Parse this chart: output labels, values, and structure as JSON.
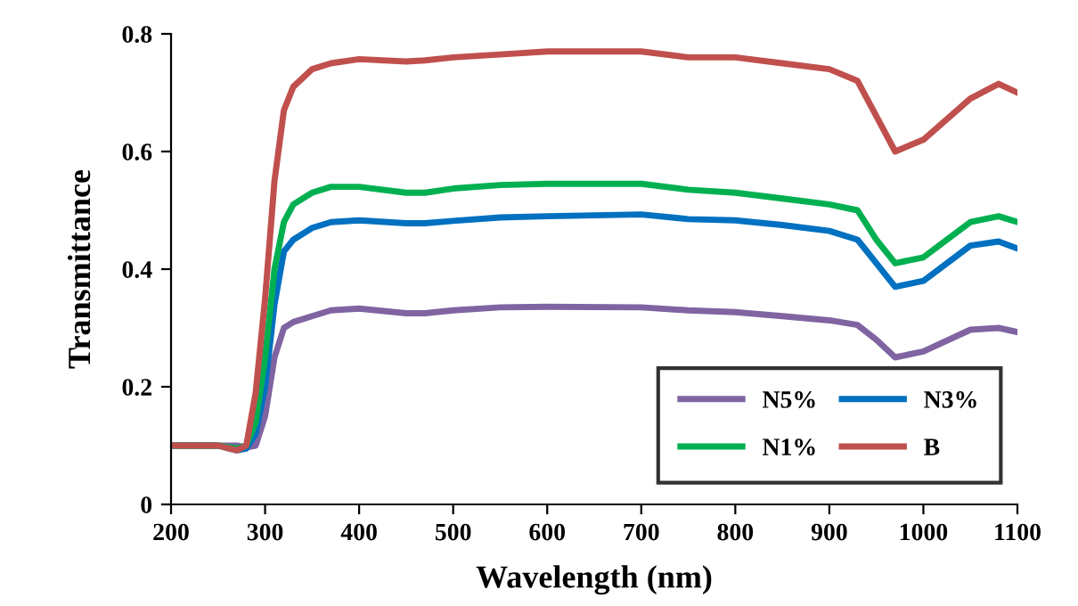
{
  "chart_data": {
    "type": "line",
    "xlabel": "Wavelength (nm)",
    "ylabel": "Transmittance",
    "x": [
      200,
      250,
      270,
      280,
      290,
      300,
      310,
      320,
      330,
      350,
      370,
      400,
      450,
      470,
      500,
      550,
      600,
      700,
      750,
      800,
      850,
      900,
      930,
      950,
      970,
      1000,
      1050,
      1080,
      1100
    ],
    "series": [
      {
        "name": "N5%",
        "color": "#8064a2",
        "values": [
          0.1,
          0.1,
          0.1,
          0.097,
          0.1,
          0.15,
          0.25,
          0.3,
          0.31,
          0.32,
          0.33,
          0.333,
          0.325,
          0.325,
          0.33,
          0.335,
          0.336,
          0.335,
          0.33,
          0.327,
          0.32,
          0.313,
          0.305,
          0.28,
          0.25,
          0.26,
          0.297,
          0.3,
          0.293
        ]
      },
      {
        "name": "N3%",
        "color": "#0070c0",
        "values": [
          0.1,
          0.1,
          0.092,
          0.095,
          0.12,
          0.2,
          0.34,
          0.43,
          0.45,
          0.47,
          0.48,
          0.483,
          0.478,
          0.478,
          0.482,
          0.488,
          0.49,
          0.493,
          0.485,
          0.483,
          0.475,
          0.465,
          0.45,
          0.41,
          0.37,
          0.38,
          0.44,
          0.447,
          0.435
        ]
      },
      {
        "name": "N1%",
        "color": "#00b050",
        "values": [
          0.1,
          0.1,
          0.095,
          0.1,
          0.14,
          0.25,
          0.4,
          0.48,
          0.51,
          0.53,
          0.54,
          0.54,
          0.53,
          0.53,
          0.537,
          0.543,
          0.545,
          0.545,
          0.535,
          0.53,
          0.52,
          0.51,
          0.5,
          0.45,
          0.41,
          0.42,
          0.48,
          0.49,
          0.48
        ]
      },
      {
        "name": "B",
        "color": "#c0504d",
        "values": [
          0.1,
          0.1,
          0.092,
          0.1,
          0.19,
          0.35,
          0.55,
          0.67,
          0.71,
          0.74,
          0.75,
          0.757,
          0.753,
          0.755,
          0.76,
          0.765,
          0.77,
          0.77,
          0.76,
          0.76,
          0.75,
          0.74,
          0.72,
          0.66,
          0.6,
          0.62,
          0.69,
          0.715,
          0.7
        ]
      }
    ],
    "xlim": [
      200,
      1100
    ],
    "xticks": [
      200,
      300,
      400,
      500,
      600,
      700,
      800,
      900,
      1000,
      1100
    ],
    "ylim": [
      0,
      0.8
    ],
    "yticks": [
      {
        "value": 0,
        "label": "0"
      },
      0.2,
      0.4,
      0.6,
      0.8
    ],
    "grid": false,
    "legend": "bottom right"
  }
}
